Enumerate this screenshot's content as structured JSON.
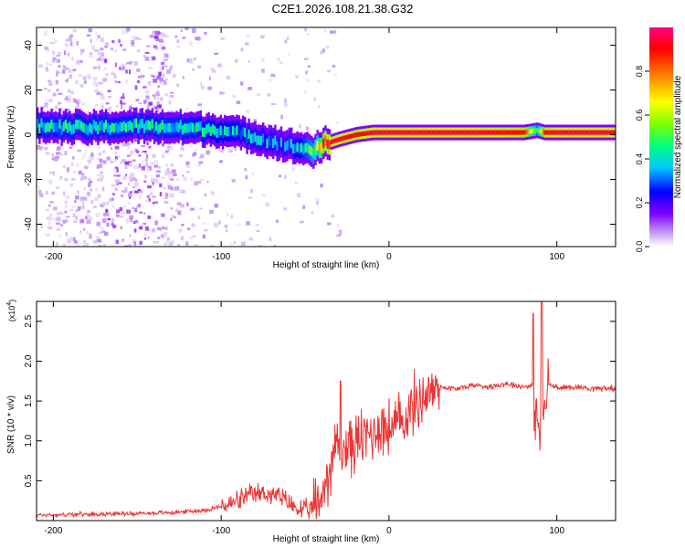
{
  "title": "C2E1.2026.108.21.38.G32",
  "chart_data": [
    {
      "type": "heatmap",
      "name": "spectrogram",
      "xlabel": "Height of straight line (km)",
      "ylabel": "Frequency (Hz)",
      "xlim": [
        -210,
        135
      ],
      "ylim": [
        -50,
        48
      ],
      "xticks": [
        -200,
        -100,
        0,
        100
      ],
      "xtick_labels": [
        "-200",
        "-100",
        "0",
        "100"
      ],
      "yticks": [
        -40,
        -20,
        0,
        20,
        40
      ],
      "ytick_labels": [
        "-40",
        "-20",
        "0",
        "20",
        "40"
      ],
      "colorbar": {
        "label": "Normalized spectral amplitude",
        "range": [
          0,
          1
        ],
        "ticks": [
          0.0,
          0.2,
          0.4,
          0.6,
          0.8
        ],
        "tick_labels": [
          "0.0",
          "0.2",
          "0.4",
          "0.6",
          "0.8"
        ],
        "colors": [
          "#ffffff",
          "#c8a0f0",
          "#8000ff",
          "#0000ff",
          "#00c8ff",
          "#00ff80",
          "#80ff00",
          "#ffff00",
          "#ff8000",
          "#ff0000",
          "#ff0080"
        ]
      },
      "ridge": {
        "x": [
          -210,
          -180,
          -150,
          -120,
          -100,
          -80,
          -60,
          -45,
          -38,
          -30,
          -20,
          -10,
          0,
          20,
          50,
          80,
          88,
          92,
          100,
          135
        ],
        "freq": [
          4,
          3,
          4,
          3,
          2,
          -1,
          -5,
          -7,
          -4,
          -2,
          0,
          1,
          1,
          1,
          1,
          1,
          2,
          1,
          1,
          1
        ],
        "amplitude": [
          0.45,
          0.45,
          0.45,
          0.45,
          0.42,
          0.38,
          0.35,
          0.55,
          0.9,
          0.95,
          0.9,
          0.95,
          0.95,
          0.95,
          0.95,
          0.9,
          0.5,
          0.9,
          0.95,
          0.95
        ]
      }
    },
    {
      "type": "line",
      "name": "snr",
      "xlabel": "Height of straight line (km)",
      "ylabel": "SNR (10 * v/v)",
      "y_multiplier": "(x10",
      "y_multiplier_exp": "4",
      "y_multiplier_close": ")",
      "xlim": [
        -210,
        135
      ],
      "ylim": [
        0,
        2.75
      ],
      "xticks": [
        -200,
        -100,
        0,
        100
      ],
      "xtick_labels": [
        "-200",
        "-100",
        "0",
        "100"
      ],
      "yticks": [
        0.5,
        1.0,
        1.5,
        2.0,
        2.5
      ],
      "ytick_labels": [
        "0.5",
        "1.0",
        "1.5",
        "2.0",
        "2.5"
      ],
      "color": "#ee3333",
      "series": [
        {
          "name": "SNR",
          "x": [
            -210,
            -180,
            -150,
            -130,
            -110,
            -95,
            -85,
            -75,
            -65,
            -55,
            -48,
            -42,
            -38,
            -35,
            -32,
            -30,
            -28,
            -25,
            -20,
            -15,
            -10,
            -5,
            0,
            5,
            10,
            15,
            20,
            25,
            30,
            40,
            50,
            60,
            70,
            80,
            85,
            88,
            90,
            91,
            92,
            95,
            100,
            110,
            120,
            135
          ],
          "y": [
            0.07,
            0.08,
            0.09,
            0.1,
            0.13,
            0.2,
            0.3,
            0.35,
            0.3,
            0.15,
            0.12,
            0.2,
            0.45,
            0.7,
            0.9,
            1.0,
            0.8,
            0.95,
            0.95,
            1.05,
            1.1,
            1.2,
            1.15,
            1.2,
            1.3,
            1.45,
            1.55,
            1.62,
            1.68,
            1.65,
            1.7,
            1.68,
            1.72,
            1.68,
            1.7,
            1.3,
            1.0,
            1.6,
            1.3,
            1.72,
            1.66,
            1.68,
            1.66,
            1.66
          ]
        }
      ],
      "spikes": [
        {
          "x": -29,
          "y": 1.75
        },
        {
          "x": 86,
          "y": 2.6
        },
        {
          "x": 91,
          "y": 2.78
        }
      ]
    }
  ]
}
